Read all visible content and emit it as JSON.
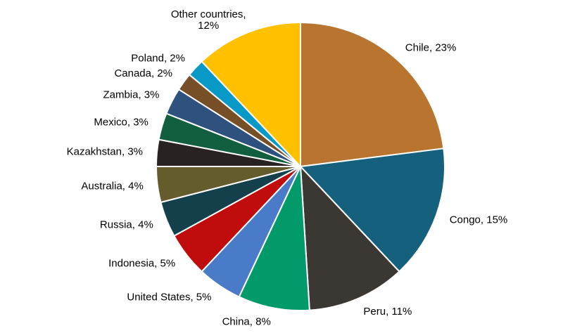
{
  "chart_data": {
    "type": "pie",
    "start_angle_deg": 0,
    "direction": "clockwise",
    "legend_position": "none",
    "label_style": "outside-end, category name and percentage",
    "slice_border_color": "#FFFFFF",
    "background_color": "#FFFFFF",
    "label_text_color": "#000000",
    "segments": [
      {
        "label": "Chile",
        "value": 23,
        "display": "Chile, 23%",
        "color": "#B9752F"
      },
      {
        "label": "Congo",
        "value": 15,
        "display": "Congo, 15%",
        "color": "#14607D"
      },
      {
        "label": "Peru",
        "value": 11,
        "display": "Peru, 11%",
        "color": "#3B3733"
      },
      {
        "label": "China",
        "value": 8,
        "display": "China, 8%",
        "color": "#029A6B"
      },
      {
        "label": "United States",
        "value": 5,
        "display": "United States, 5%",
        "color": "#4A7BC9"
      },
      {
        "label": "Indonesia",
        "value": 5,
        "display": "Indonesia, 5%",
        "color": "#C00C0C"
      },
      {
        "label": "Russia",
        "value": 4,
        "display": "Russia, 4%",
        "color": "#14404C"
      },
      {
        "label": "Australia",
        "value": 4,
        "display": "Australia, 4%",
        "color": "#655C2D"
      },
      {
        "label": "Kazakhstan",
        "value": 3,
        "display": "Kazakhstan, 3%",
        "color": "#282221"
      },
      {
        "label": "Mexico",
        "value": 3,
        "display": "Mexico, 3%",
        "color": "#115F3F"
      },
      {
        "label": "Zambia",
        "value": 3,
        "display": "Zambia, 3%",
        "color": "#2F517E"
      },
      {
        "label": "Canada",
        "value": 2,
        "display": "Canada, 2%",
        "color": "#774F27"
      },
      {
        "label": "Poland",
        "value": 2,
        "display": "Poland, 2%",
        "color": "#0999C6"
      },
      {
        "label": "Other countries",
        "value": 12,
        "display": "Other countries, 12%",
        "lines": [
          "Other countries,",
          "12%"
        ],
        "color": "#FFC000"
      }
    ]
  }
}
